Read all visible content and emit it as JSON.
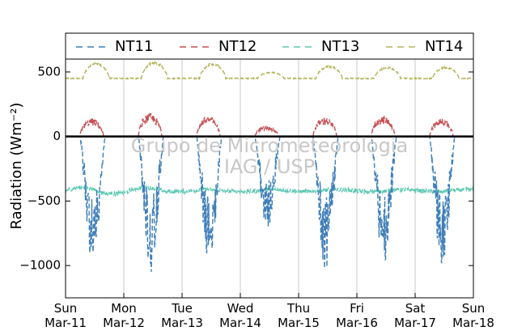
{
  "chart_data": {
    "type": "line",
    "ylabel": "Radiation (Wm⁻²)",
    "ylim": [
      -1250,
      600
    ],
    "yticks": [
      500,
      0,
      -500,
      -1000
    ],
    "ytick_labels": [
      "500",
      "0",
      "−500",
      "−1000"
    ],
    "xlim": [
      0,
      7
    ],
    "xticks": [
      0,
      1,
      2,
      3,
      4,
      5,
      6,
      7
    ],
    "xtick_labels": [
      {
        "day": "Sun",
        "date": "Mar-11"
      },
      {
        "day": "Mon",
        "date": "Mar-12"
      },
      {
        "day": "Tue",
        "date": "Mar-13"
      },
      {
        "day": "Wed",
        "date": "Mar-14"
      },
      {
        "day": "Thu",
        "date": "Mar-15"
      },
      {
        "day": "Fri",
        "date": "Mar-16"
      },
      {
        "day": "Sat",
        "date": "Mar-17"
      },
      {
        "day": "Sun",
        "date": "Mar-18"
      }
    ],
    "grid": "vertical",
    "legend_position": "top",
    "zero_line": true,
    "series": [
      {
        "name": "NT11",
        "color": "#3f7fb9",
        "style": "dashed",
        "daily_minimum": [
          -1000,
          -1050,
          -1030,
          -730,
          -1050,
          -1000,
          -1030
        ]
      },
      {
        "name": "NT12",
        "color": "#c44e52",
        "style": "dashed",
        "daily_maximum": [
          140,
          180,
          160,
          80,
          150,
          160,
          140
        ]
      },
      {
        "name": "NT13",
        "color": "#5bc8b0",
        "style": "dashed",
        "typical_value": -420,
        "range": [
          -460,
          -370
        ]
      },
      {
        "name": "NT14",
        "color": "#b5b35a",
        "style": "dashed",
        "nighttime_value": 450,
        "daily_maximum": [
          570,
          580,
          570,
          500,
          550,
          540,
          540
        ]
      }
    ]
  },
  "watermark": {
    "line1": "Grupo de Micrometeorologia",
    "line2": "IAG / USP"
  }
}
